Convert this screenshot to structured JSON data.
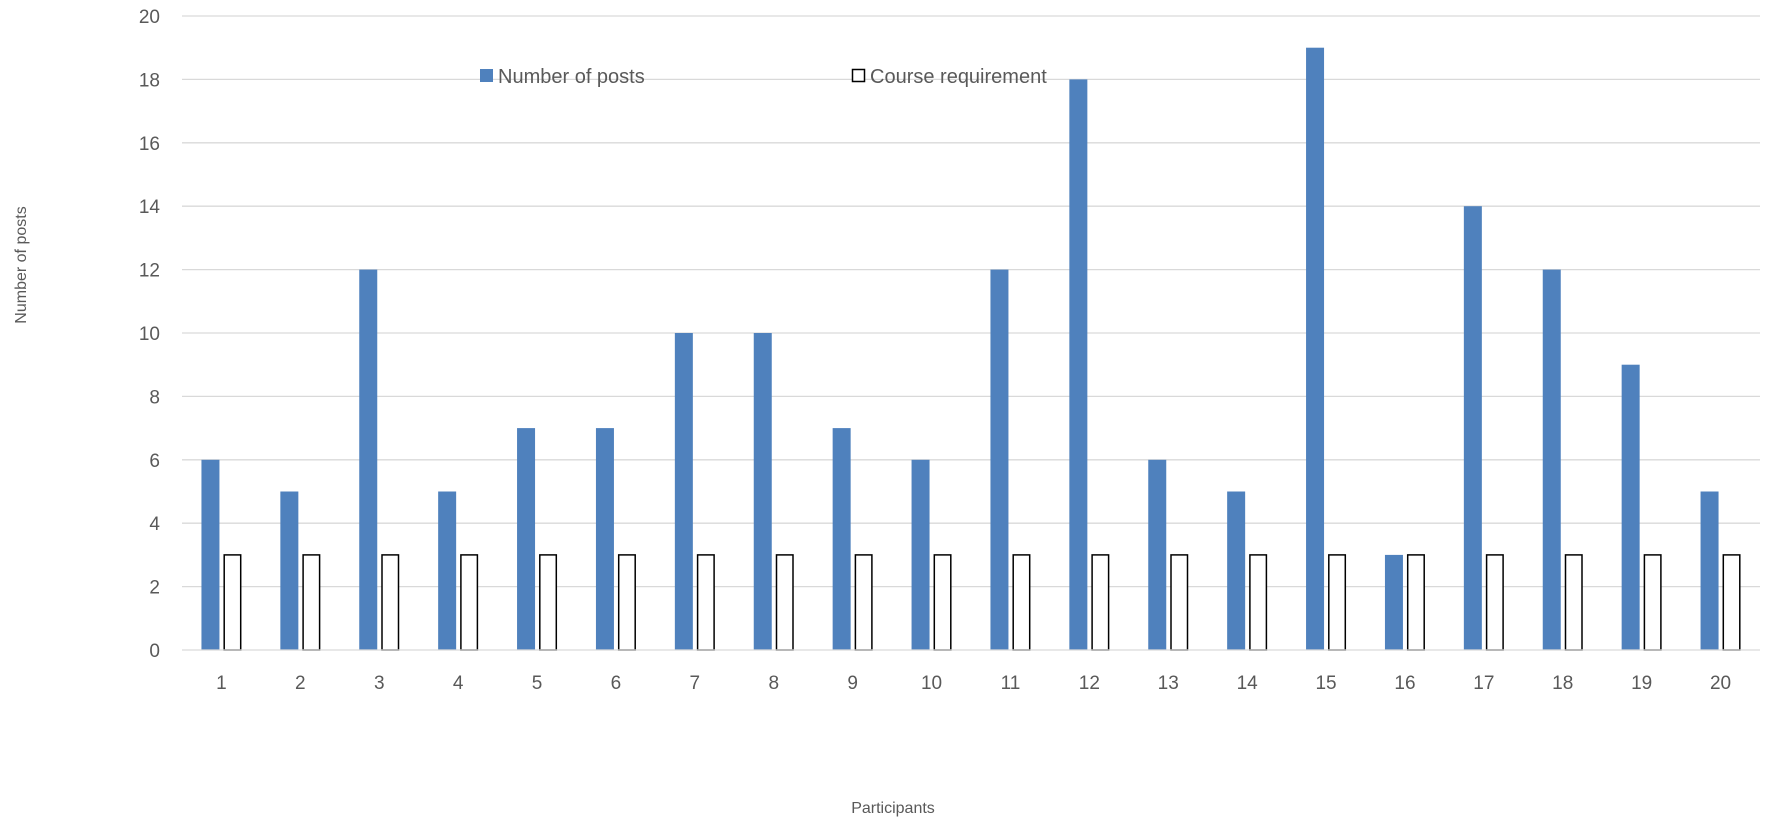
{
  "chart_data": {
    "type": "bar",
    "categories": [
      "1",
      "2",
      "3",
      "4",
      "5",
      "6",
      "7",
      "8",
      "9",
      "10",
      "11",
      "12",
      "13",
      "14",
      "15",
      "16",
      "17",
      "18",
      "19",
      "20"
    ],
    "series": [
      {
        "name": "Number of posts",
        "values": [
          6,
          5,
          12,
          5,
          7,
          7,
          10,
          10,
          7,
          6,
          12,
          18,
          6,
          5,
          19,
          3,
          14,
          12,
          9,
          5
        ],
        "color": "#4f81bd"
      },
      {
        "name": "Course requirement",
        "values": [
          3,
          3,
          3,
          3,
          3,
          3,
          3,
          3,
          3,
          3,
          3,
          3,
          3,
          3,
          3,
          3,
          3,
          3,
          3,
          3
        ],
        "color": "#ffffff",
        "stroke": "#000000"
      }
    ],
    "xlabel": "Participants",
    "ylabel": "Number  of posts",
    "ylim": [
      0,
      20
    ],
    "yticks": [
      0,
      2,
      4,
      6,
      8,
      10,
      12,
      14,
      16,
      18,
      20
    ],
    "grid": true,
    "legend_position": "top-center"
  }
}
